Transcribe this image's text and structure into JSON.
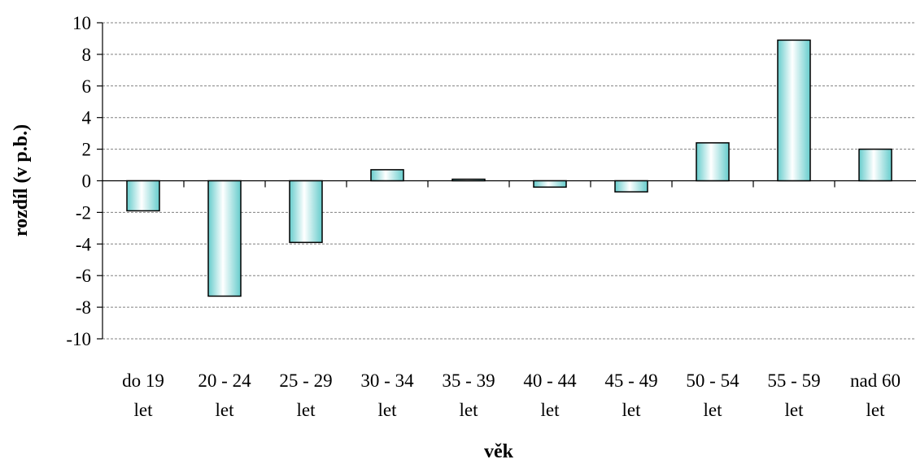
{
  "chart_data": {
    "type": "bar",
    "title": "",
    "xlabel": "věk",
    "ylabel": "rozdíl (v p.b.)",
    "ylim": [
      -10,
      10
    ],
    "yticks": [
      10,
      8,
      6,
      4,
      2,
      0,
      -2,
      -4,
      -6,
      -8,
      -10
    ],
    "grid": "horizontal dashed",
    "categories": [
      [
        "do 19",
        "let"
      ],
      [
        "20 - 24",
        "let"
      ],
      [
        "25 - 29",
        "let"
      ],
      [
        "30 - 34",
        "let"
      ],
      [
        "35 - 39",
        "let"
      ],
      [
        "40 - 44",
        "let"
      ],
      [
        "45 - 49",
        "let"
      ],
      [
        "50 - 54",
        "let"
      ],
      [
        "55 - 59",
        "let"
      ],
      [
        "nad 60",
        "let"
      ]
    ],
    "values": [
      -1.9,
      -7.3,
      -3.9,
      0.7,
      0.1,
      -0.4,
      -0.7,
      2.4,
      8.9,
      2.0
    ],
    "colors": {
      "bar_fill_edge": "#66cccc",
      "bar_fill_center": "#ffffff",
      "bar_stroke": "#000000",
      "grid": "#808080"
    }
  }
}
